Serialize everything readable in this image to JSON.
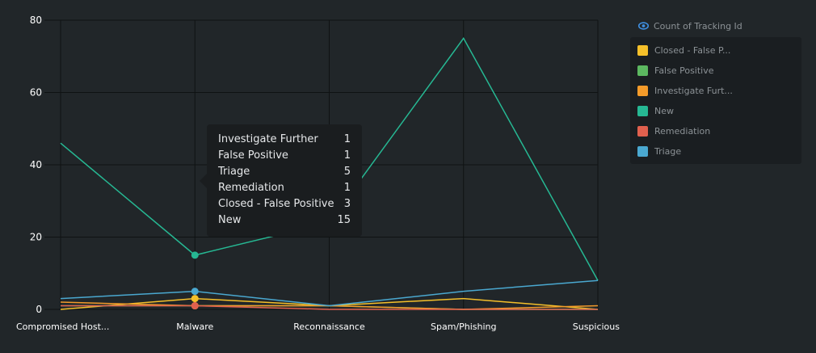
{
  "legend": {
    "title": "Count of Tracking Id",
    "items": [
      {
        "label": "Closed - False P...",
        "color": "#f5c02a"
      },
      {
        "label": "False Positive",
        "color": "#5cb860"
      },
      {
        "label": "Investigate Furt...",
        "color": "#f49b2a"
      },
      {
        "label": "New",
        "color": "#26b893"
      },
      {
        "label": "Remediation",
        "color": "#e0604e"
      },
      {
        "label": "Triage",
        "color": "#4aa8d0"
      }
    ]
  },
  "tooltip": {
    "rows": [
      {
        "label": "Investigate Further",
        "value": "1"
      },
      {
        "label": "False Positive",
        "value": "1"
      },
      {
        "label": "Triage",
        "value": "5"
      },
      {
        "label": "Remediation",
        "value": "1"
      },
      {
        "label": "Closed - False Positive",
        "value": "3"
      },
      {
        "label": "New",
        "value": "15"
      }
    ]
  },
  "chart_data": {
    "type": "line",
    "categories": [
      "Compromised Host...",
      "Malware",
      "Reconnaissance",
      "Spam/Phishing",
      "Suspicious"
    ],
    "ylim": [
      0,
      80
    ],
    "yticks": [
      0,
      20,
      40,
      60,
      80
    ],
    "grid": true,
    "legend_position": "top-right",
    "highlighted_category": "Malware",
    "series": [
      {
        "name": "Closed - False P...",
        "color": "#f5c02a",
        "values": [
          0,
          3,
          1,
          3,
          0
        ]
      },
      {
        "name": "False Positive",
        "color": "#5cb860",
        "values": [
          1,
          1,
          1,
          0,
          0
        ]
      },
      {
        "name": "Investigate Furt...",
        "color": "#f49b2a",
        "values": [
          2,
          1,
          1,
          0,
          1
        ]
      },
      {
        "name": "New",
        "color": "#26b893",
        "values": [
          46,
          15,
          24,
          75,
          8
        ]
      },
      {
        "name": "Remediation",
        "color": "#e0604e",
        "values": [
          1,
          1,
          0,
          0,
          0
        ]
      },
      {
        "name": "Triage",
        "color": "#4aa8d0",
        "values": [
          3,
          5,
          1,
          5,
          8
        ]
      }
    ]
  }
}
